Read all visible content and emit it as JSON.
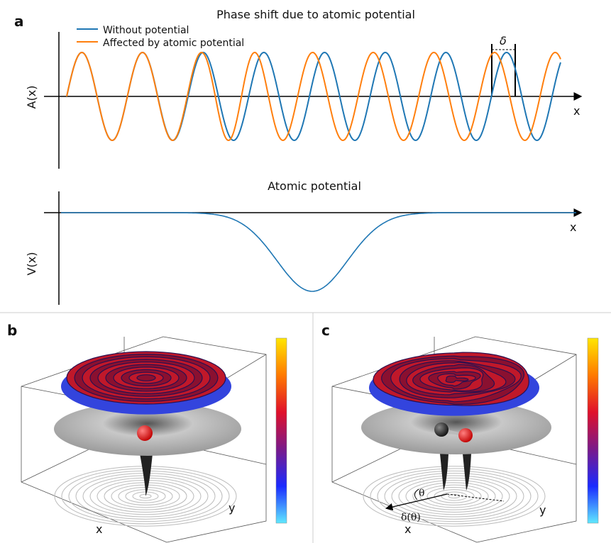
{
  "panel_a": {
    "label": "a",
    "title": "Phase shift due to atomic potential",
    "legend": [
      "Without potential",
      "Affected by atomic potential"
    ],
    "y_label": "A(x)",
    "x_label": "x",
    "shift_label": "δ"
  },
  "panel_v": {
    "title": "Atomic potential",
    "y_label": "V(x)",
    "x_label": "x"
  },
  "panel_b": {
    "label": "b",
    "x_label": "x",
    "y_label": "y"
  },
  "panel_c": {
    "label": "c",
    "x_label": "x",
    "y_label": "y",
    "angle_label": "θ",
    "shift_label": "δ(θ)"
  }
}
